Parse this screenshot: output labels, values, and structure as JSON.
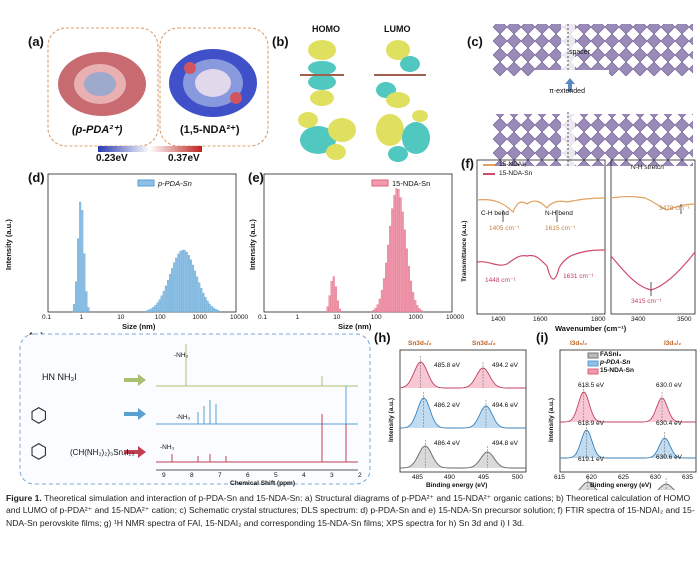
{
  "panels": {
    "a": {
      "label": "(a)",
      "mol1": "(p-PDA²⁺)",
      "mol2": "(1,5-NDA²⁺)",
      "scale_min": "0.23eV",
      "scale_max": "0.37eV"
    },
    "b": {
      "label": "(b)",
      "homo": "HOMO",
      "lumo": "LUMO"
    },
    "c": {
      "label": "(c)",
      "annot_top": "π-extended",
      "annot_bot": "spacer"
    },
    "d": {
      "label": "(d)",
      "legend": "p-PDA-Sn",
      "xlabel": "Size (nm)",
      "ylabel": "Intensity (a.u.)",
      "xticks": [
        "0.1",
        "1",
        "10",
        "100",
        "1000",
        "10000"
      ]
    },
    "e": {
      "label": "(e)",
      "legend": "15-NDA-Sn",
      "xlabel": "Size (nm)",
      "ylabel": "Intensity (a.u.)",
      "xticks": [
        "0.1",
        "1",
        "10",
        "100",
        "1000",
        "10000"
      ]
    },
    "f": {
      "label": "(f)",
      "legend1": "15-NDAI₂",
      "legend2": "15-NDA-Sn",
      "ylabel": "Transmittance (a.u.)",
      "xlabel": "Wavenumber (cm⁻¹)",
      "ann": [
        "C-H bend",
        "N-H bend",
        "1405 cm⁻¹",
        "1615 cm⁻¹",
        "1448 cm⁻¹",
        "1631 cm⁻¹",
        "N-H stretch",
        "3478 cm⁻¹",
        "3415 cm⁻¹"
      ],
      "xticks_left": [
        "1400",
        "1600",
        "1800"
      ],
      "xticks_right": [
        "3400",
        "3500"
      ]
    },
    "g": {
      "label": "(g)",
      "xlabel": "Chemical Shift (ppm)",
      "xticks": [
        "9",
        "8",
        "7",
        "6",
        "5",
        "4",
        "3",
        "2"
      ],
      "nh": "-NH₃",
      "formula1": "HN    NH₃I",
      "formula3": "(CH(NH₂)₂)₃Sn₄I₁₃"
    },
    "h": {
      "label": "(h)",
      "peak_left": "Sn3d₅/₂",
      "peak_right": "Sn3d₃/₂",
      "xlabel": "Binding energy (eV)",
      "ylabel": "Intensity (a.u.)",
      "xticks": [
        "485",
        "490",
        "495",
        "500"
      ],
      "values": [
        "485.8 eV",
        "494.2 eV",
        "486.2 eV",
        "494.6 eV",
        "486.4 eV",
        "494.8 eV"
      ]
    },
    "i": {
      "label": "(i)",
      "peak_left": "I3d₅/₂",
      "peak_right": "I3d₃/₂",
      "xlabel": "Binding energy (eV)",
      "ylabel": "Intensity (a.u.)",
      "xticks": [
        "615",
        "620",
        "625",
        "630",
        "635"
      ],
      "legend": [
        "FASnI₃",
        "p-PDA-Sn",
        "15-NDA-Sn"
      ],
      "values": [
        "618.5 eV",
        "630.0 eV",
        "618.9 eV",
        "630.4 eV",
        "619.1 eV",
        "630.6 eV"
      ]
    }
  },
  "caption": {
    "fig": "Figure 1.",
    "text": "Theoretical simulation and interaction of p-PDA-Sn and 15-NDA-Sn: a) Structural diagrams of p-PDA²⁺ and 15-NDA²⁺ organic cations; b) Theoretical calculation of HOMO and LUMO of p-PDA²⁺ and 15-NDA²⁺ cation; c) Schematic crystal structures; DLS spectrum: d) p-PDA-Sn and e) 15-NDA-Sn precursor solution; f) FTIR spectra of 15-NDAI₂ and 15-NDA-Sn perovskite films; g) ¹H NMR spectra of FAI, 15-NDAI₂ and corresponding 15-NDA-Sn films; XPS spectra for h) Sn 3d and i) I 3d."
  },
  "colors": {
    "pink": "#e0607a",
    "blue": "#5aa0d0",
    "gray": "#8a8a8a",
    "olive": "#a8c070",
    "orange": "#e0a060"
  }
}
